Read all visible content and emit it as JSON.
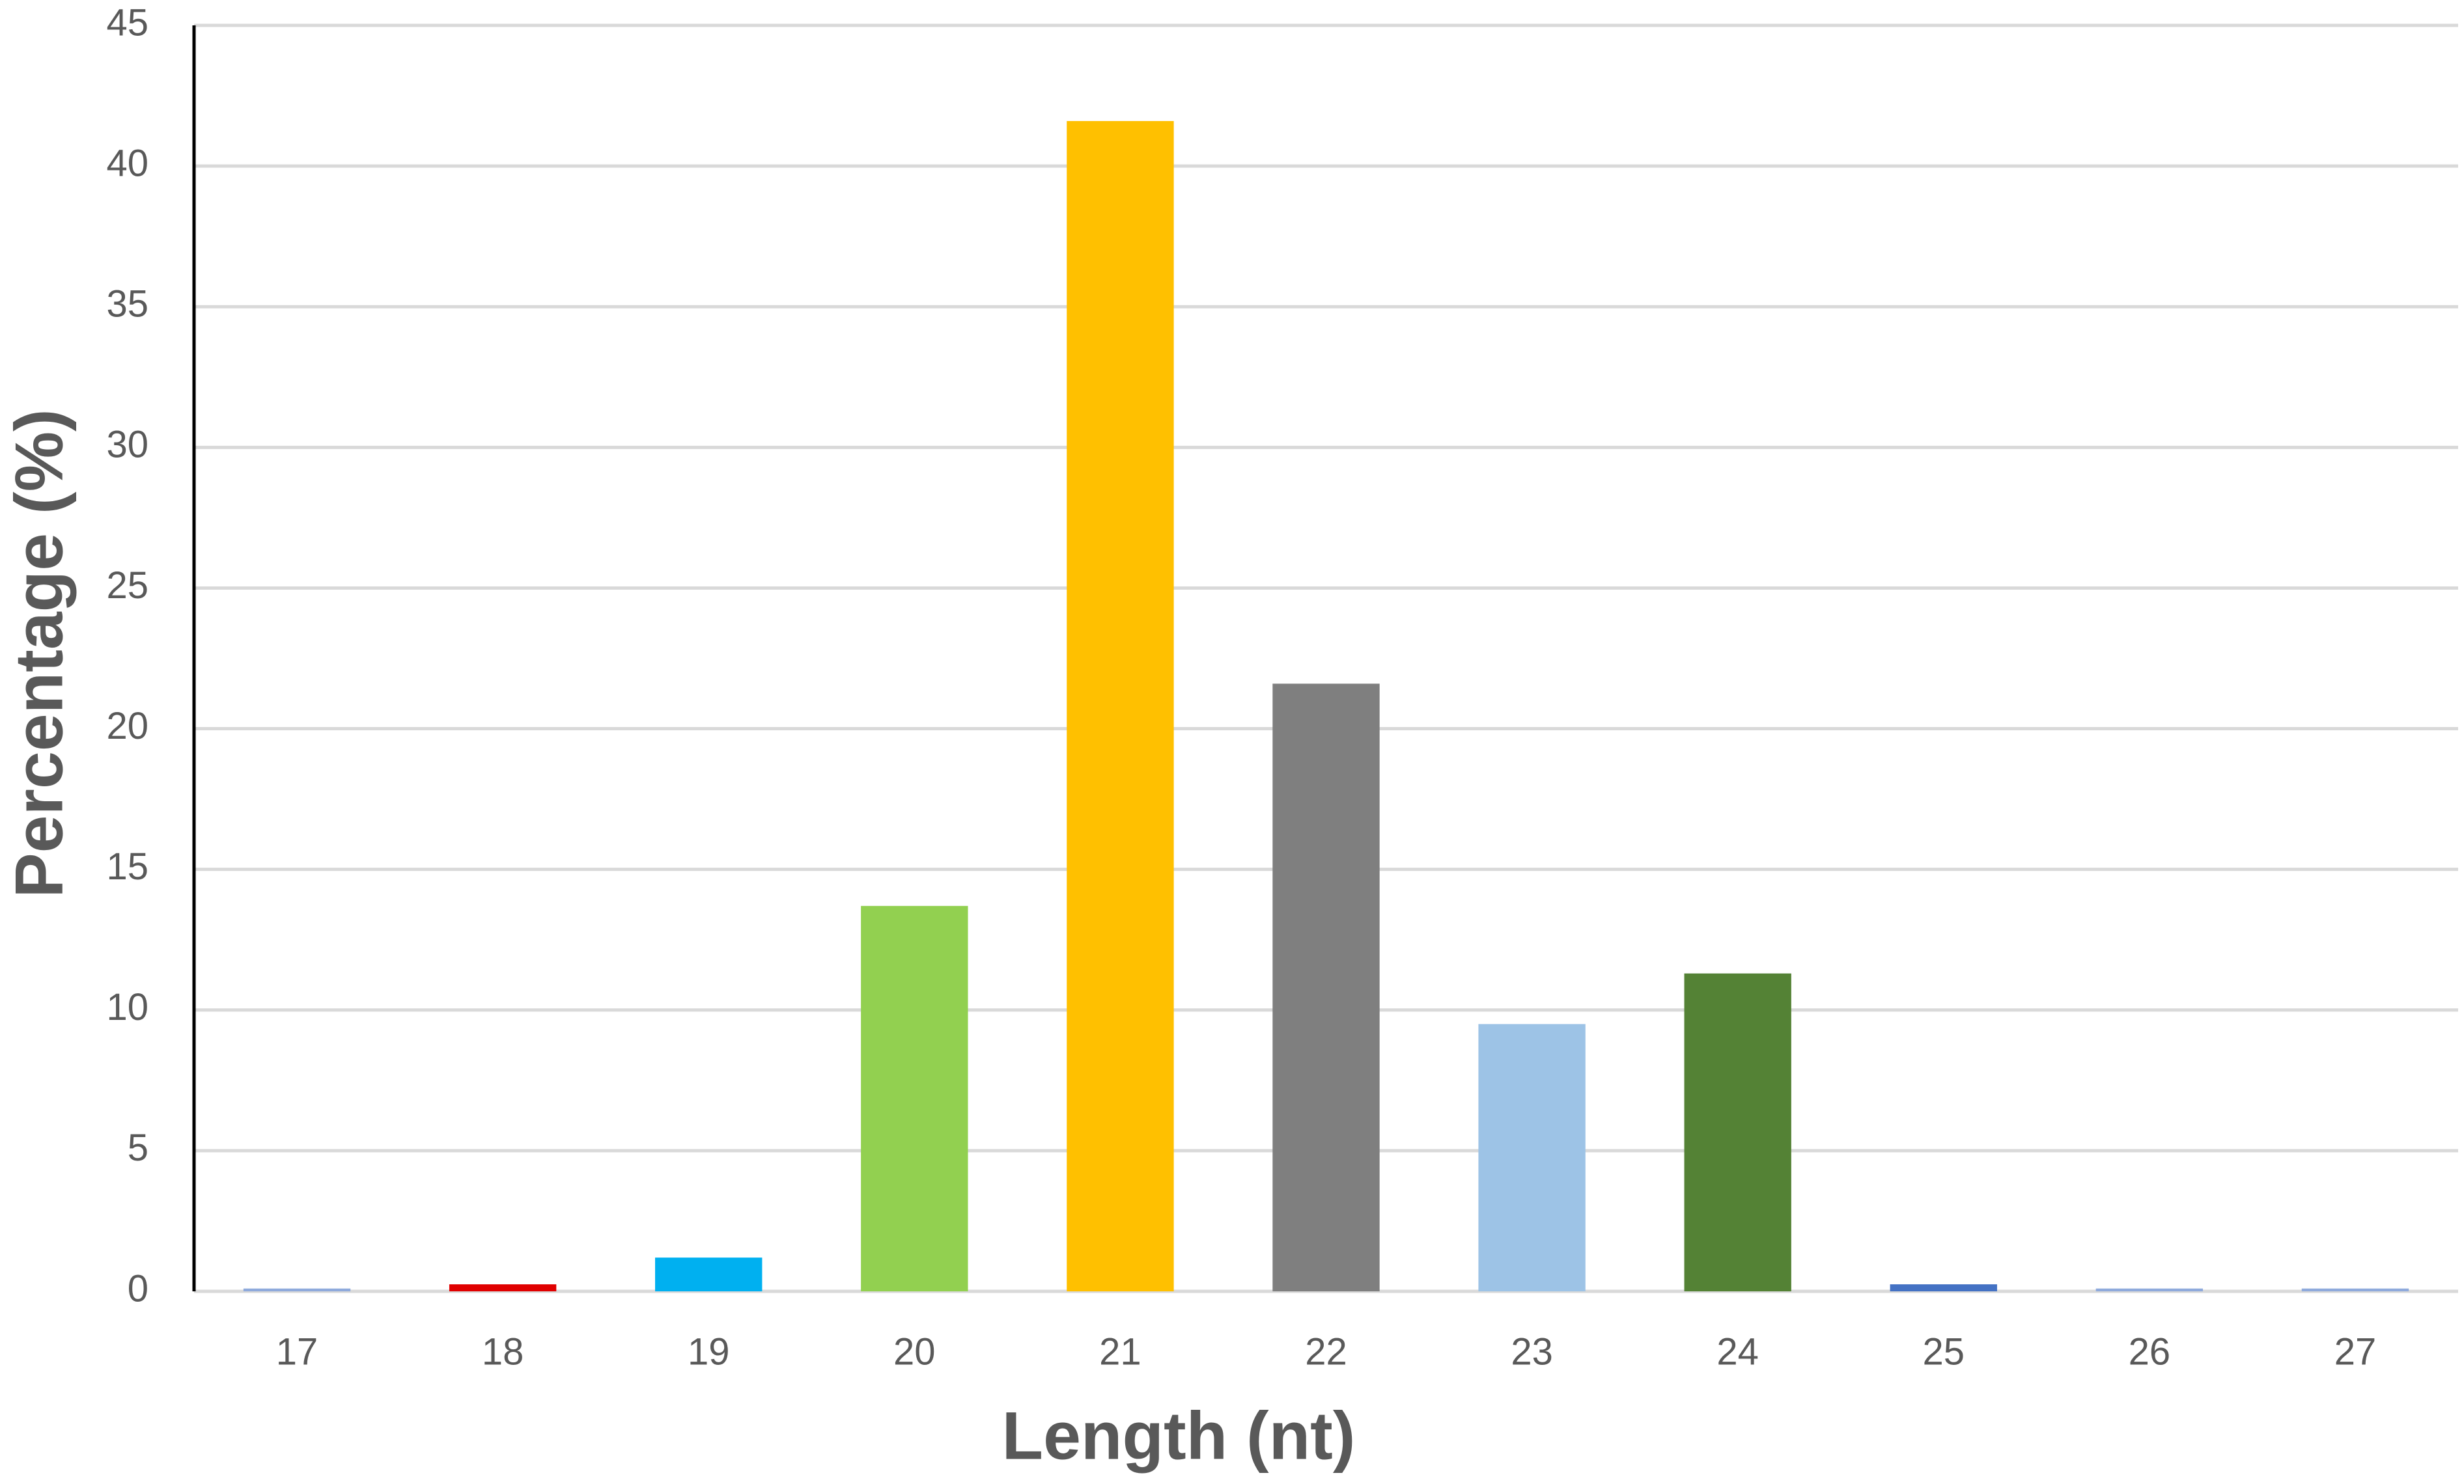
{
  "chart_data": {
    "type": "bar",
    "x_label": "Length (nt)",
    "y_label": "Percentage (%)",
    "categories": [
      "17",
      "18",
      "19",
      "20",
      "21",
      "22",
      "23",
      "24",
      "25",
      "26",
      "27"
    ],
    "values": [
      0.1,
      0.25,
      1.2,
      13.7,
      41.6,
      21.6,
      9.5,
      11.3,
      0.25,
      0.1,
      0.1
    ],
    "colors": [
      "#8faadc",
      "#e00000",
      "#00b0f0",
      "#92d050",
      "#ffc000",
      "#7f7f7f",
      "#9dc3e6",
      "#548235",
      "#4472c4",
      "#8faadc",
      "#8faadc"
    ],
    "ylim": [
      0,
      45
    ],
    "yticks": [
      0,
      5,
      10,
      15,
      20,
      25,
      30,
      35,
      40,
      45
    ],
    "grid": true
  }
}
